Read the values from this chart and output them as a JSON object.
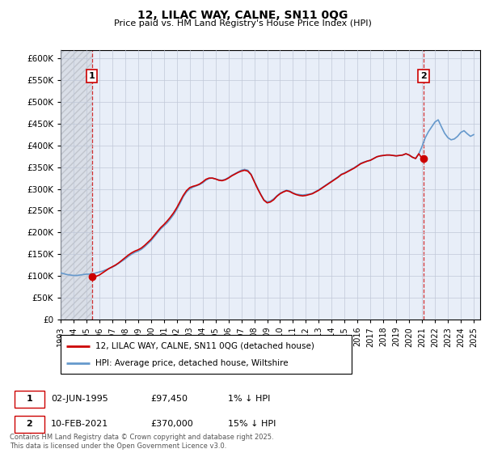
{
  "title": "12, LILAC WAY, CALNE, SN11 0QG",
  "subtitle": "Price paid vs. HM Land Registry's House Price Index (HPI)",
  "bg_color": "#ffffff",
  "plot_bg": "#e8eef8",
  "hatch_bg": "#d8d8d8",
  "grid_color": "#c0c8d8",
  "hpi_color": "#6699cc",
  "price_color": "#cc0000",
  "vline1_color": "#cc0000",
  "vline2_color": "#cc0000",
  "ylim": [
    0,
    620000
  ],
  "yticks": [
    0,
    50000,
    100000,
    150000,
    200000,
    250000,
    300000,
    350000,
    400000,
    450000,
    500000,
    550000,
    600000
  ],
  "ytick_labels": [
    "£0",
    "£50K",
    "£100K",
    "£150K",
    "£200K",
    "£250K",
    "£300K",
    "£350K",
    "£400K",
    "£450K",
    "£500K",
    "£550K",
    "£600K"
  ],
  "sale1_date": 1995.42,
  "sale1_price": 97450,
  "sale1_label": "1",
  "sale2_date": 2021.11,
  "sale2_price": 370000,
  "sale2_label": "2",
  "legend_line1": "12, LILAC WAY, CALNE, SN11 0QG (detached house)",
  "legend_line2": "HPI: Average price, detached house, Wiltshire",
  "note1_label": "1",
  "note1_date": "02-JUN-1995",
  "note1_price": "£97,450",
  "note1_hpi": "1% ↓ HPI",
  "note2_label": "2",
  "note2_date": "10-FEB-2021",
  "note2_price": "£370,000",
  "note2_hpi": "15% ↓ HPI",
  "footer": "Contains HM Land Registry data © Crown copyright and database right 2025.\nThis data is licensed under the Open Government Licence v3.0.",
  "hpi_years": [
    1993.0,
    1993.25,
    1993.5,
    1993.75,
    1994.0,
    1994.25,
    1994.5,
    1994.75,
    1995.0,
    1995.25,
    1995.5,
    1995.75,
    1996.0,
    1996.25,
    1996.5,
    1996.75,
    1997.0,
    1997.25,
    1997.5,
    1997.75,
    1998.0,
    1998.25,
    1998.5,
    1998.75,
    1999.0,
    1999.25,
    1999.5,
    1999.75,
    2000.0,
    2000.25,
    2000.5,
    2000.75,
    2001.0,
    2001.25,
    2001.5,
    2001.75,
    2002.0,
    2002.25,
    2002.5,
    2002.75,
    2003.0,
    2003.25,
    2003.5,
    2003.75,
    2004.0,
    2004.25,
    2004.5,
    2004.75,
    2005.0,
    2005.25,
    2005.5,
    2005.75,
    2006.0,
    2006.25,
    2006.5,
    2006.75,
    2007.0,
    2007.25,
    2007.5,
    2007.75,
    2008.0,
    2008.25,
    2008.5,
    2008.75,
    2009.0,
    2009.25,
    2009.5,
    2009.75,
    2010.0,
    2010.25,
    2010.5,
    2010.75,
    2011.0,
    2011.25,
    2011.5,
    2011.75,
    2012.0,
    2012.25,
    2012.5,
    2012.75,
    2013.0,
    2013.25,
    2013.5,
    2013.75,
    2014.0,
    2014.25,
    2014.5,
    2014.75,
    2015.0,
    2015.25,
    2015.5,
    2015.75,
    2016.0,
    2016.25,
    2016.5,
    2016.75,
    2017.0,
    2017.25,
    2017.5,
    2017.75,
    2018.0,
    2018.25,
    2018.5,
    2018.75,
    2019.0,
    2019.25,
    2019.5,
    2019.75,
    2020.0,
    2020.25,
    2020.5,
    2020.75,
    2021.0,
    2021.25,
    2021.5,
    2021.75,
    2022.0,
    2022.25,
    2022.5,
    2022.75,
    2023.0,
    2023.25,
    2023.5,
    2023.75,
    2024.0,
    2024.25,
    2024.5,
    2024.75,
    2025.0
  ],
  "hpi_values": [
    107000,
    105000,
    103000,
    102000,
    101000,
    101000,
    102000,
    103000,
    104000,
    104000,
    105000,
    107000,
    109000,
    111000,
    114000,
    117000,
    120000,
    124000,
    129000,
    134000,
    139000,
    145000,
    150000,
    154000,
    157000,
    161000,
    167000,
    174000,
    181000,
    190000,
    199000,
    208000,
    215000,
    222000,
    231000,
    241000,
    253000,
    267000,
    282000,
    293000,
    300000,
    304000,
    307000,
    310000,
    314000,
    320000,
    324000,
    325000,
    323000,
    321000,
    320000,
    322000,
    326000,
    331000,
    335000,
    339000,
    343000,
    345000,
    343000,
    334000,
    318000,
    303000,
    288000,
    275000,
    270000,
    272000,
    277000,
    284000,
    290000,
    294000,
    297000,
    295000,
    291000,
    288000,
    287000,
    286000,
    287000,
    288000,
    290000,
    294000,
    298000,
    303000,
    308000,
    313000,
    318000,
    323000,
    328000,
    334000,
    337000,
    341000,
    345000,
    349000,
    354000,
    359000,
    362000,
    364000,
    366000,
    370000,
    374000,
    376000,
    377000,
    378000,
    378000,
    377000,
    376000,
    377000,
    378000,
    381000,
    378000,
    373000,
    370000,
    381000,
    398000,
    418000,
    432000,
    443000,
    454000,
    459000,
    443000,
    428000,
    418000,
    413000,
    415000,
    421000,
    430000,
    434000,
    427000,
    421000,
    425000
  ],
  "price_values": [
    null,
    null,
    null,
    null,
    null,
    null,
    null,
    null,
    null,
    97450,
    97450,
    99000,
    102000,
    107000,
    112000,
    117000,
    121000,
    125000,
    130000,
    136000,
    142000,
    148000,
    153000,
    157000,
    160000,
    164000,
    170000,
    177000,
    184000,
    193000,
    202000,
    211000,
    218000,
    226000,
    235000,
    245000,
    257000,
    271000,
    285000,
    296000,
    303000,
    306000,
    308000,
    311000,
    316000,
    322000,
    325000,
    325000,
    323000,
    320000,
    319000,
    321000,
    325000,
    330000,
    334000,
    338000,
    341000,
    343000,
    341000,
    333000,
    317000,
    301000,
    287000,
    274000,
    268000,
    270000,
    275000,
    283000,
    289000,
    293000,
    296000,
    294000,
    290000,
    287000,
    285000,
    284000,
    285000,
    287000,
    289000,
    293000,
    297000,
    302000,
    307000,
    312000,
    317000,
    322000,
    327000,
    333000,
    336000,
    340000,
    344000,
    348000,
    353000,
    358000,
    361000,
    364000,
    366000,
    370000,
    374000,
    376000,
    377000,
    378000,
    378000,
    377000,
    376000,
    377000,
    378000,
    381000,
    378000,
    373000,
    370000,
    381000,
    370000,
    null,
    null,
    null,
    null,
    null,
    null,
    null,
    null,
    null,
    null,
    null,
    null,
    null,
    null,
    null,
    null
  ]
}
